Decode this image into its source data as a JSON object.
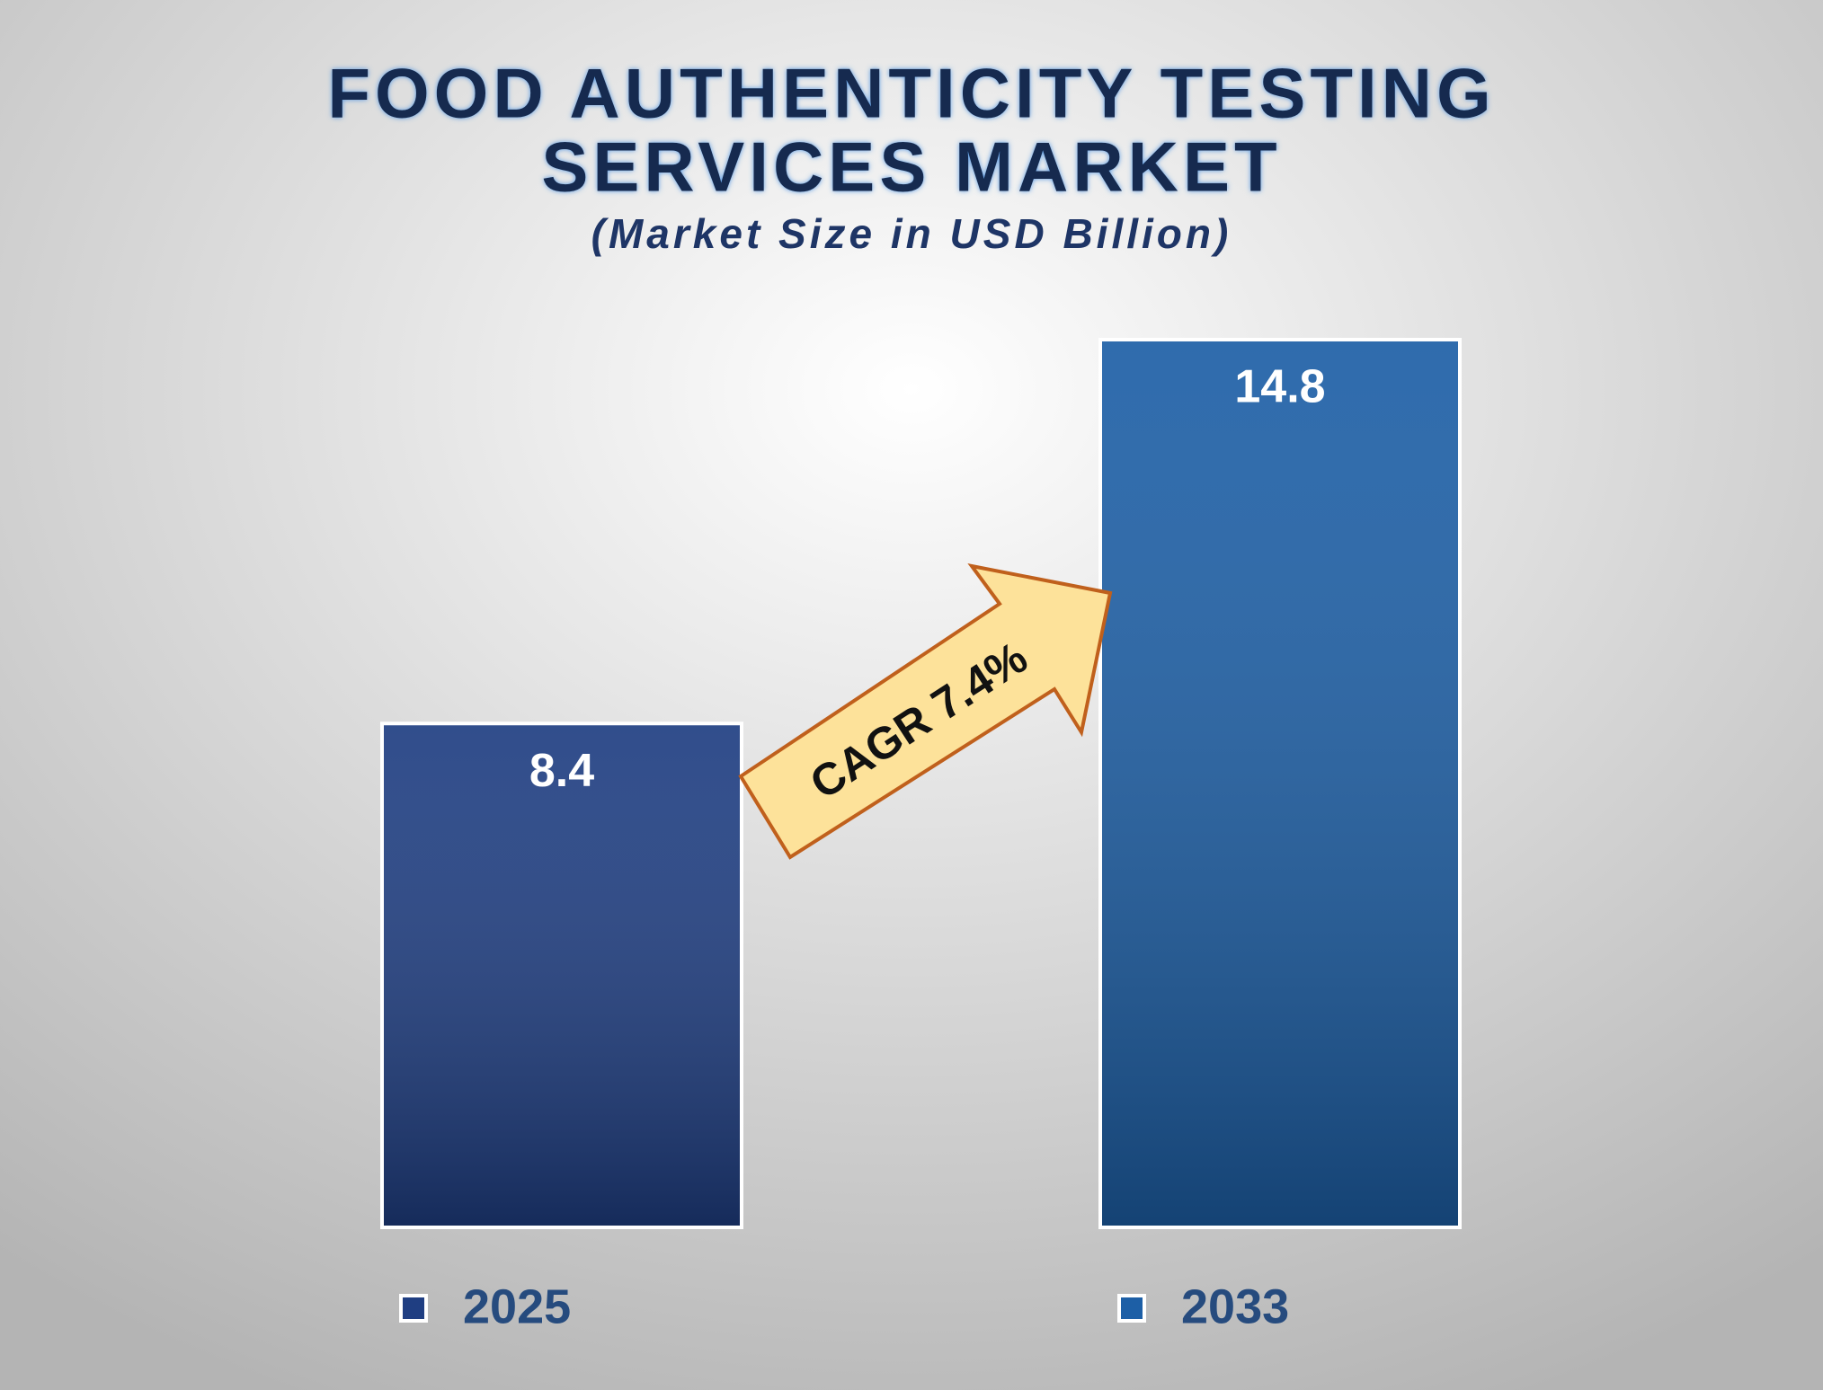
{
  "chart_data": {
    "type": "bar",
    "title": [
      "FOOD AUTHENTICITY TESTING",
      "SERVICES MARKET"
    ],
    "subtitle": "(Market Size in USD Billion)",
    "categories": [
      "2025",
      "2033"
    ],
    "values": [
      8.4,
      14.8
    ],
    "colors": [
      "#1f3e82",
      "#1d5fa6"
    ],
    "annotation": "CAGR 7.4%"
  }
}
